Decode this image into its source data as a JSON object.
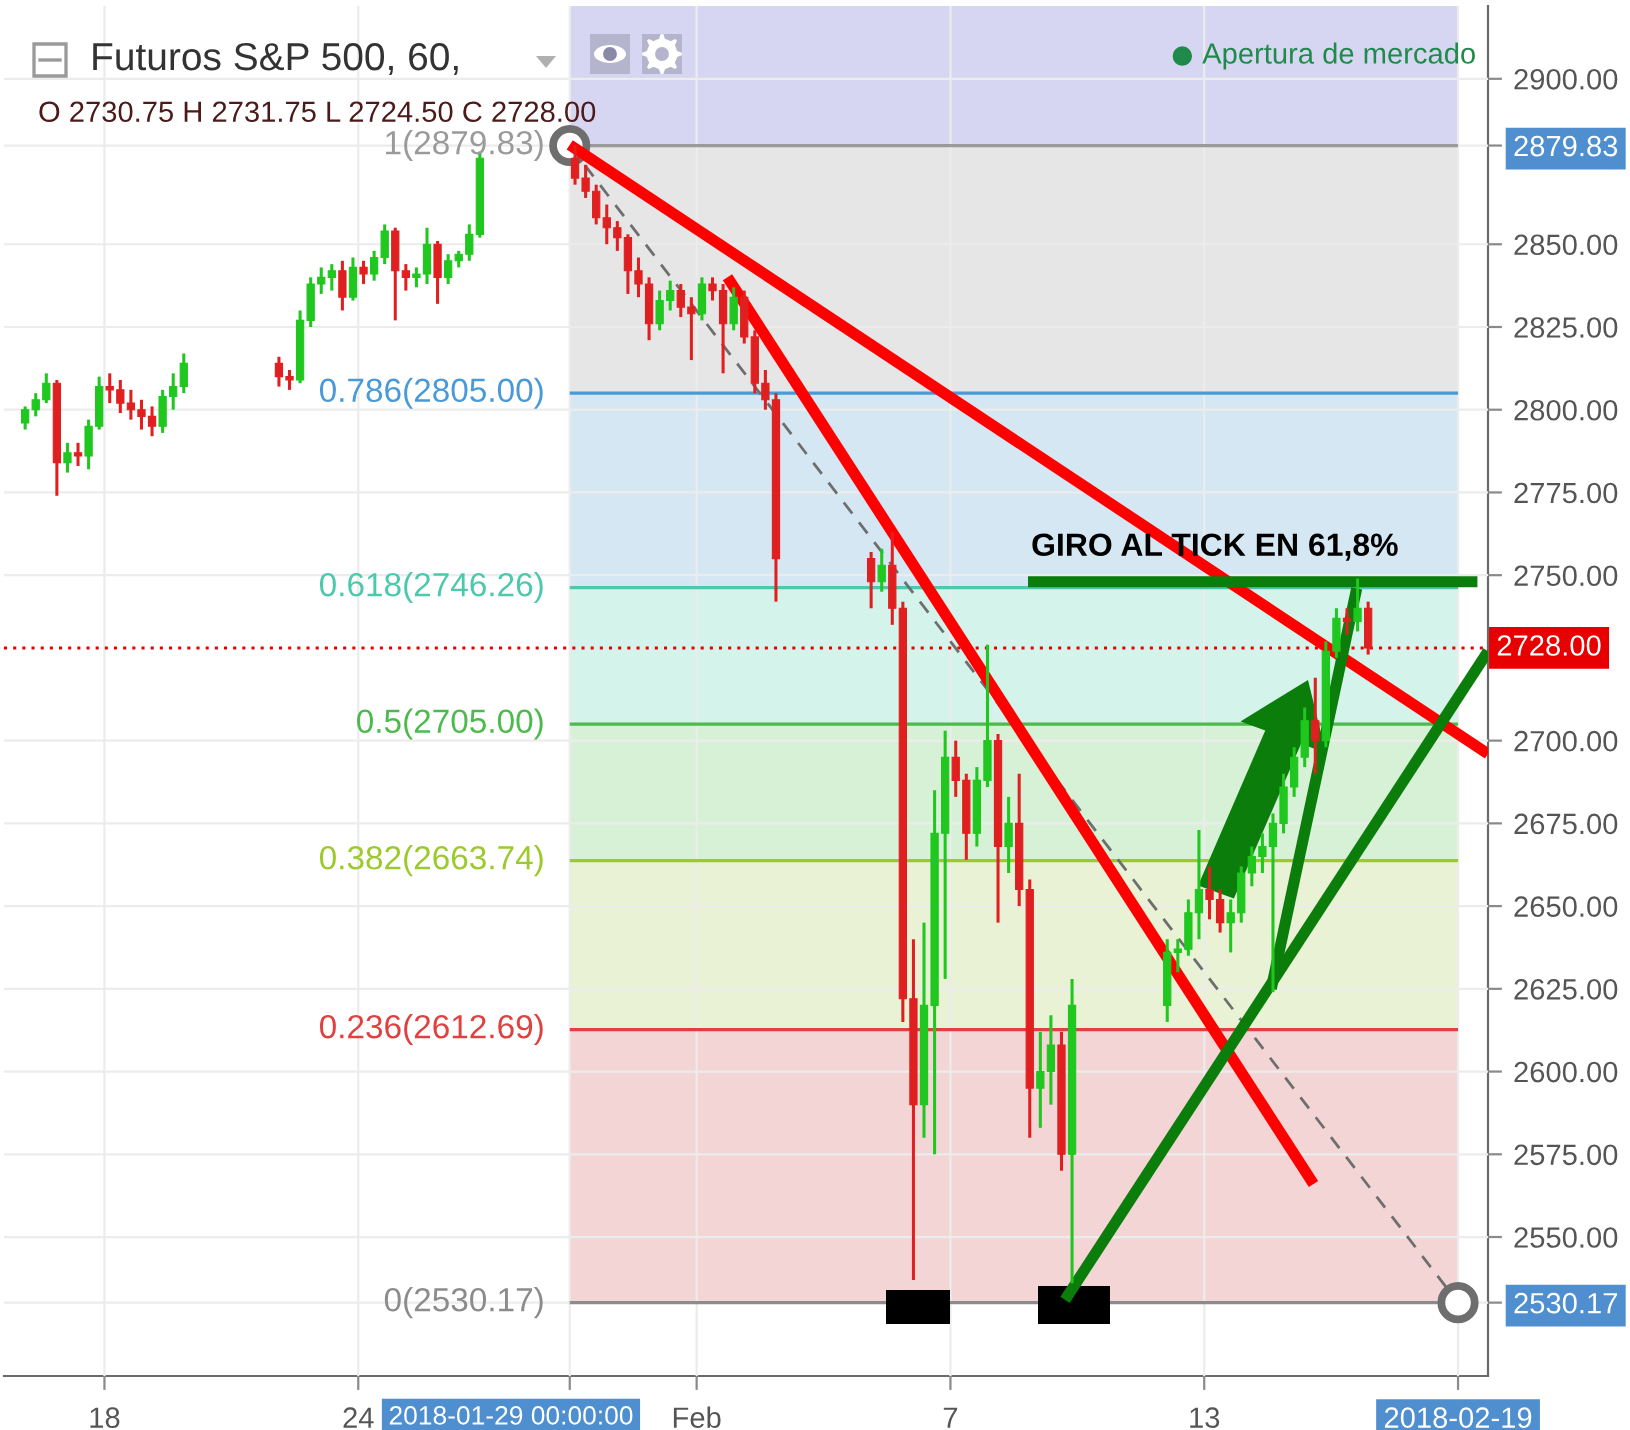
{
  "chart_data": {
    "type": "candlestick",
    "title": "Futuros S&P 500, 60,",
    "subtitle": "O 2730.75 H 2731.75 L 2724.50 C 2728.00",
    "x": [
      "2018-01-16T03:00",
      "2018-01-16T09:00",
      "2018-01-16T15:00",
      "2018-01-16T21:00",
      "2018-01-17T03:00",
      "2018-01-17T09:00",
      "2018-01-17T15:00",
      "2018-01-17T21:00",
      "2018-01-18T03:00",
      "2018-01-18T09:00",
      "2018-01-18T15:00",
      "2018-01-18T21:00",
      "2018-01-19T03:00",
      "2018-01-19T09:00",
      "2018-01-19T15:00",
      "2018-01-19T21:00",
      "2018-01-22T03:00",
      "2018-01-22T09:00",
      "2018-01-22T15:00",
      "2018-01-22T21:00",
      "2018-01-23T03:00",
      "2018-01-23T09:00",
      "2018-01-23T15:00",
      "2018-01-23T21:00",
      "2018-01-24T03:00",
      "2018-01-24T09:00",
      "2018-01-24T15:00",
      "2018-01-24T21:00",
      "2018-01-25T03:00",
      "2018-01-25T09:00",
      "2018-01-25T15:00",
      "2018-01-25T21:00",
      "2018-01-26T03:00",
      "2018-01-26T09:00",
      "2018-01-26T15:00",
      "2018-01-26T21:00",
      "2018-01-29T03:00",
      "2018-01-29T09:00",
      "2018-01-29T15:00",
      "2018-01-29T21:00",
      "2018-01-30T03:00",
      "2018-01-30T09:00",
      "2018-01-30T15:00",
      "2018-01-30T21:00",
      "2018-01-31T03:00",
      "2018-01-31T09:00",
      "2018-01-31T15:00",
      "2018-01-31T21:00",
      "2018-02-01T03:00",
      "2018-02-01T09:00",
      "2018-02-01T15:00",
      "2018-02-01T21:00",
      "2018-02-02T03:00",
      "2018-02-02T09:00",
      "2018-02-02T15:00",
      "2018-02-02T21:00",
      "2018-02-05T03:00",
      "2018-02-05T09:00",
      "2018-02-05T15:00",
      "2018-02-05T21:00",
      "2018-02-06T03:00",
      "2018-02-06T09:00",
      "2018-02-06T15:00",
      "2018-02-06T21:00",
      "2018-02-07T03:00",
      "2018-02-07T09:00",
      "2018-02-07T15:00",
      "2018-02-07T21:00",
      "2018-02-08T03:00",
      "2018-02-08T09:00",
      "2018-02-08T15:00",
      "2018-02-08T21:00",
      "2018-02-09T03:00",
      "2018-02-09T09:00",
      "2018-02-09T15:00",
      "2018-02-09T21:00",
      "2018-02-12T03:00",
      "2018-02-12T09:00",
      "2018-02-12T15:00",
      "2018-02-12T21:00",
      "2018-02-13T03:00",
      "2018-02-13T09:00",
      "2018-02-13T15:00",
      "2018-02-13T21:00",
      "2018-02-14T03:00",
      "2018-02-14T09:00",
      "2018-02-14T15:00",
      "2018-02-14T21:00",
      "2018-02-15T03:00",
      "2018-02-15T09:00",
      "2018-02-15T15:00",
      "2018-02-15T21:00",
      "2018-02-16T03:00",
      "2018-02-16T09:00",
      "2018-02-16T15:00",
      "2018-02-16T21:00"
    ],
    "ohlc": [
      [
        2796,
        2801,
        2794,
        2800
      ],
      [
        2800,
        2805,
        2798,
        2803
      ],
      [
        2803,
        2811,
        2802,
        2808
      ],
      [
        2808,
        2809,
        2774,
        2784
      ],
      [
        2784,
        2790,
        2781,
        2787
      ],
      [
        2787,
        2790,
        2783,
        2786
      ],
      [
        2786,
        2797,
        2782,
        2795
      ],
      [
        2795,
        2810,
        2794,
        2807
      ],
      [
        2807,
        2811,
        2802,
        2806
      ],
      [
        2806,
        2809,
        2799,
        2802
      ],
      [
        2802,
        2806,
        2797,
        2800
      ],
      [
        2800,
        2803,
        2794,
        2798
      ],
      [
        2798,
        2801,
        2792,
        2795
      ],
      [
        2795,
        2806,
        2793,
        2804
      ],
      [
        2804,
        2811,
        2800,
        2807
      ],
      [
        2807,
        2817,
        2805,
        2814
      ],
      [
        2814,
        2816,
        2807,
        2810
      ],
      [
        2810,
        2812,
        2806,
        2809
      ],
      [
        2809,
        2830,
        2808,
        2827
      ],
      [
        2827,
        2840,
        2825,
        2838
      ],
      [
        2838,
        2843,
        2835,
        2840
      ],
      [
        2840,
        2844,
        2836,
        2842
      ],
      [
        2842,
        2845,
        2830,
        2834
      ],
      [
        2834,
        2846,
        2833,
        2843
      ],
      [
        2843,
        2845,
        2838,
        2841
      ],
      [
        2841,
        2848,
        2839,
        2846
      ],
      [
        2846,
        2856,
        2844,
        2854
      ],
      [
        2854,
        2855,
        2827,
        2842
      ],
      [
        2842,
        2844,
        2836,
        2840
      ],
      [
        2840,
        2843,
        2837,
        2841
      ],
      [
        2841,
        2855,
        2838,
        2850
      ],
      [
        2850,
        2851,
        2832,
        2840
      ],
      [
        2840,
        2847,
        2838,
        2845
      ],
      [
        2845,
        2848,
        2843,
        2847
      ],
      [
        2847,
        2856,
        2845,
        2853
      ],
      [
        2853,
        2878,
        2852,
        2876
      ],
      [
        2876,
        2880,
        2868,
        2870
      ],
      [
        2870,
        2874,
        2864,
        2866
      ],
      [
        2866,
        2868,
        2856,
        2858
      ],
      [
        2858,
        2862,
        2850,
        2855
      ],
      [
        2855,
        2857,
        2848,
        2852
      ],
      [
        2852,
        2853,
        2835,
        2842
      ],
      [
        2842,
        2846,
        2834,
        2838
      ],
      [
        2838,
        2840,
        2821,
        2826
      ],
      [
        2826,
        2836,
        2824,
        2833
      ],
      [
        2833,
        2839,
        2830,
        2836
      ],
      [
        2836,
        2838,
        2828,
        2831
      ],
      [
        2831,
        2834,
        2815,
        2829
      ],
      [
        2829,
        2840,
        2827,
        2838
      ],
      [
        2838,
        2840,
        2833,
        2836
      ],
      [
        2836,
        2838,
        2811,
        2826
      ],
      [
        2826,
        2837,
        2824,
        2834
      ],
      [
        2834,
        2836,
        2820,
        2822
      ],
      [
        2822,
        2824,
        2805,
        2808
      ],
      [
        2808,
        2812,
        2800,
        2803
      ],
      [
        2803,
        2805,
        2742,
        2755
      ],
      [
        2755,
        2757,
        2740,
        2748
      ],
      [
        2748,
        2758,
        2745,
        2753
      ],
      [
        2753,
        2763,
        2735,
        2740
      ],
      [
        2740,
        2742,
        2615,
        2622
      ],
      [
        2622,
        2640,
        2537,
        2590
      ],
      [
        2590,
        2645,
        2580,
        2620
      ],
      [
        2620,
        2685,
        2575,
        2672
      ],
      [
        2672,
        2703,
        2628,
        2695
      ],
      [
        2695,
        2700,
        2683,
        2688
      ],
      [
        2688,
        2690,
        2664,
        2672
      ],
      [
        2672,
        2692,
        2668,
        2688
      ],
      [
        2688,
        2729,
        2686,
        2700
      ],
      [
        2700,
        2702,
        2645,
        2668
      ],
      [
        2668,
        2683,
        2660,
        2675
      ],
      [
        2675,
        2690,
        2650,
        2655
      ],
      [
        2655,
        2658,
        2580,
        2595
      ],
      [
        2595,
        2612,
        2583,
        2600
      ],
      [
        2600,
        2617,
        2590,
        2608
      ],
      [
        2608,
        2612,
        2570,
        2575
      ],
      [
        2575,
        2628,
        2536,
        2620
      ],
      [
        2620,
        2640,
        2615,
        2636
      ],
      [
        2636,
        2640,
        2630,
        2637
      ],
      [
        2637,
        2652,
        2635,
        2648
      ],
      [
        2648,
        2673,
        2640,
        2655
      ],
      [
        2655,
        2662,
        2646,
        2652
      ],
      [
        2652,
        2655,
        2642,
        2645
      ],
      [
        2645,
        2652,
        2636,
        2648
      ],
      [
        2648,
        2662,
        2645,
        2660
      ],
      [
        2660,
        2668,
        2656,
        2665
      ],
      [
        2665,
        2672,
        2660,
        2668
      ],
      [
        2668,
        2678,
        2624,
        2675
      ],
      [
        2675,
        2690,
        2672,
        2686
      ],
      [
        2686,
        2698,
        2683,
        2695
      ],
      [
        2695,
        2710,
        2692,
        2706
      ],
      [
        2706,
        2719,
        2690,
        2700
      ],
      [
        2700,
        2730,
        2698,
        2727
      ],
      [
        2727,
        2740,
        2725,
        2737
      ],
      [
        2737,
        2740,
        2732,
        2736
      ],
      [
        2736,
        2749,
        2733,
        2740
      ],
      [
        2740,
        2742,
        2726,
        2728
      ]
    ],
    "colors": [
      "#1fc71f",
      "#1fc71f",
      "#1fc71f",
      "#e02020",
      "#1fc71f",
      "#e02020",
      "#1fc71f",
      "#1fc71f",
      "#e02020",
      "#e02020",
      "#e02020",
      "#e02020",
      "#e02020",
      "#1fc71f",
      "#1fc71f",
      "#1fc71f",
      "#e02020",
      "#e02020",
      "#1fc71f",
      "#1fc71f",
      "#1fc71f",
      "#1fc71f",
      "#e02020",
      "#1fc71f",
      "#e02020",
      "#1fc71f",
      "#1fc71f",
      "#e02020",
      "#e02020",
      "#1fc71f",
      "#1fc71f",
      "#e02020",
      "#1fc71f",
      "#1fc71f",
      "#1fc71f",
      "#1fc71f",
      "#e02020",
      "#e02020",
      "#e02020",
      "#e02020",
      "#e02020",
      "#e02020",
      "#e02020",
      "#e02020",
      "#1fc71f",
      "#1fc71f",
      "#e02020",
      "#e02020",
      "#1fc71f",
      "#e02020",
      "#e02020",
      "#1fc71f",
      "#e02020",
      "#e02020",
      "#e02020",
      "#e02020",
      "#e02020",
      "#1fc71f",
      "#e02020",
      "#e02020",
      "#e02020",
      "#1fc71f",
      "#1fc71f",
      "#1fc71f",
      "#e02020",
      "#e02020",
      "#1fc71f",
      "#1fc71f",
      "#e02020",
      "#1fc71f",
      "#e02020",
      "#e02020",
      "#1fc71f",
      "#1fc71f",
      "#e02020",
      "#1fc71f",
      "#1fc71f",
      "#1fc71f",
      "#1fc71f",
      "#1fc71f",
      "#e02020",
      "#e02020",
      "#1fc71f",
      "#1fc71f",
      "#1fc71f",
      "#1fc71f",
      "#1fc71f",
      "#1fc71f",
      "#1fc71f",
      "#1fc71f",
      "#e02020",
      "#1fc71f",
      "#1fc71f",
      "#e02020",
      "#1fc71f",
      "#e02020"
    ],
    "series": [
      {
        "type": "line",
        "x": [
          "2018-01-29T00:00",
          "2018-02-19T00:00"
        ],
        "values": [
          2879.83,
          2530.17
        ],
        "color": "#6e6e6e",
        "line_style": "dashed",
        "marker": "circle"
      },
      {
        "type": "line",
        "x": [
          "2018-01-29T00:00",
          "2018-02-19T17:00"
        ],
        "values": [
          2880,
          2696
        ],
        "color": "#ff0000",
        "line_style": "solid"
      },
      {
        "type": "line",
        "x": [
          "2018-02-01T17:30",
          "2018-02-15T14:00"
        ],
        "values": [
          2840,
          2566
        ],
        "color": "#ff0000",
        "line_style": "solid"
      },
      {
        "type": "line",
        "x": [
          "2018-02-09T17:00",
          "2018-02-19T17:00"
        ],
        "values": [
          2531,
          2727
        ],
        "color": "#0a7d0a",
        "line_style": "solid"
      },
      {
        "type": "line",
        "x": [
          "2018-02-14T14:00",
          "2018-02-16T14:30"
        ],
        "values": [
          2625,
          2746
        ],
        "color": "#0a7d0a",
        "line_style": "solid"
      },
      {
        "type": "line",
        "x": [
          "2018-02-08T20:00",
          "2018-02-19T11:00"
        ],
        "values": [
          2748,
          2748
        ],
        "color": "#0a7d0a",
        "line_style": "solid"
      }
    ],
    "xlim": [
      "2018-01-15T15:00",
      "2018-02-19T17:00"
    ],
    "xticks": [
      {
        "value": "2018-01-18",
        "label": "18"
      },
      {
        "value": "2018-01-24",
        "label": "24"
      },
      {
        "value": "2018-01-29T00:00",
        "label": null
      },
      {
        "value": "2018-02-01",
        "label": "Feb"
      },
      {
        "value": "2018-02-07",
        "label": "7"
      },
      {
        "value": "2018-02-13",
        "label": "13"
      },
      {
        "value": "2018-02-19T00:00",
        "label": "2018-02-19"
      }
    ],
    "ylim": [
      2508,
      2922
    ],
    "yticks": [
      {
        "value": 2530.17,
        "label": "2530.17"
      },
      {
        "value": 2550,
        "label": "2550.00"
      },
      {
        "value": 2575,
        "label": "2575.00"
      },
      {
        "value": 2600,
        "label": "2600.00"
      },
      {
        "value": 2625,
        "label": "2625.00"
      },
      {
        "value": 2650,
        "label": "2650.00"
      },
      {
        "value": 2675,
        "label": "2675.00"
      },
      {
        "value": 2700,
        "label": "2700.00"
      },
      {
        "value": 2750,
        "label": "2750.00"
      },
      {
        "value": 2775,
        "label": "2775.00"
      },
      {
        "value": 2800,
        "label": "2800.00"
      },
      {
        "value": 2825,
        "label": "2825.00"
      },
      {
        "value": 2850,
        "label": "2850.00"
      },
      {
        "value": 2879.83,
        "label": "2879.83"
      },
      {
        "value": 2900,
        "label": "2900.00"
      }
    ],
    "bands": [
      {
        "axis": "y",
        "from": 2879.83,
        "to": 2922,
        "color": "#d6d6f2"
      },
      {
        "axis": "y",
        "from": 2805,
        "to": 2879.83,
        "color": "#e6e6e6"
      },
      {
        "axis": "y",
        "from": 2746.26,
        "to": 2805,
        "color": "#d4e7f3"
      },
      {
        "axis": "y",
        "from": 2705,
        "to": 2746.26,
        "color": "#d4f3ea"
      },
      {
        "axis": "y",
        "from": 2663.74,
        "to": 2705,
        "color": "#d6f1d5"
      },
      {
        "axis": "y",
        "from": 2612.69,
        "to": 2663.74,
        "color": "#e9f2d4"
      },
      {
        "axis": "y",
        "from": 2530.17,
        "to": 2612.69,
        "color": "#f3d5d5"
      }
    ],
    "ref_lines": [
      {
        "axis": "y",
        "value": 2879.83,
        "label": "1(2879.83)",
        "color": "#9a9a9a"
      },
      {
        "axis": "y",
        "value": 2805,
        "label": "0.786(2805.00)",
        "color": "#4a9ad8"
      },
      {
        "axis": "y",
        "value": 2746.26,
        "label": "0.618(2746.26)",
        "color": "#4cc8ad"
      },
      {
        "axis": "y",
        "value": 2705,
        "label": "0.5(2705.00)",
        "color": "#4cba4c"
      },
      {
        "axis": "y",
        "value": 2663.74,
        "label": "0.382(2663.74)",
        "color": "#9cc92c"
      },
      {
        "axis": "y",
        "value": 2612.69,
        "label": "0.236(2612.69)",
        "color": "#e04040"
      },
      {
        "axis": "y",
        "value": 2530.17,
        "label": "0(2530.17)",
        "color": "#8c8c8c"
      },
      {
        "axis": "y",
        "value": 2728,
        "label": "2728.00",
        "color": "#e80000",
        "line_style": "dotted"
      }
    ],
    "annotations": [
      "Apertura de mercado",
      "2018-01-29 00:00:00",
      {
        "text": "GIRO AL TICK EN 61,8%",
        "x": "2018-02-13T06:00",
        "y": 2748
      }
    ],
    "grid": true
  }
}
